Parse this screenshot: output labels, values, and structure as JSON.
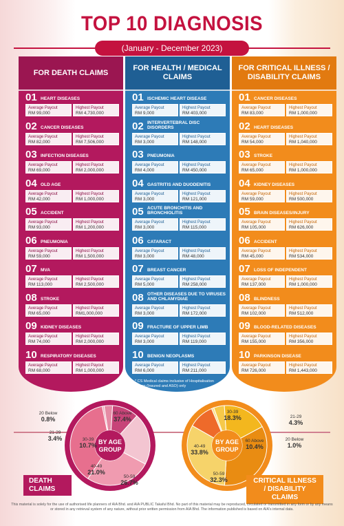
{
  "header": {
    "title": "TOP 10 DIAGNOSIS",
    "subtitle": "(January - December 2023)"
  },
  "columns": {
    "death": {
      "title": "FOR DEATH CLAIMS",
      "items": [
        {
          "num": "01",
          "name": "HEART DISEASES",
          "avg_label": "Average Payout",
          "avg": "RM 99,000",
          "high_label": "Highest Payout",
          "high": "RM 4,730,000"
        },
        {
          "num": "02",
          "name": "CANCER DISEASES",
          "avg_label": "Average Payout",
          "avg": "RM 82,000",
          "high_label": "Highest Payout",
          "high": "RM 7,506,000"
        },
        {
          "num": "03",
          "name": "INFECTION DISEASES",
          "avg_label": "Average Payout",
          "avg": "RM 69,000",
          "high_label": "Highest Payout",
          "high": "RM 2,000,000"
        },
        {
          "num": "04",
          "name": "OLD AGE",
          "avg_label": "Average Payout",
          "avg": "RM 42,000",
          "high_label": "Highest Payout",
          "high": "RM 1,000,000"
        },
        {
          "num": "05",
          "name": "ACCIDENT",
          "avg_label": "Average Payout",
          "avg": "RM 93,000",
          "high_label": "Highest Payout",
          "high": "RM 1,200,000"
        },
        {
          "num": "06",
          "name": "PNEUMONIA",
          "avg_label": "Average Payout",
          "avg": "RM 59,000",
          "high_label": "Highest Payout",
          "high": "RM 1,500,000"
        },
        {
          "num": "07",
          "name": "MVA",
          "avg_label": "Average Payout",
          "avg": "RM 113,000",
          "high_label": "Highest Payout",
          "high": "RM 2,500,000"
        },
        {
          "num": "08",
          "name": "STROKE",
          "avg_label": "Average Payout",
          "avg": "RM 65,000",
          "high_label": "Highest Payout",
          "high": "RM1,000,000"
        },
        {
          "num": "09",
          "name": "KIDNEY DISEASES",
          "avg_label": "Average Payout",
          "avg": "RM 74,000",
          "high_label": "Highest Payout",
          "high": "RM 2,000,000"
        },
        {
          "num": "10",
          "name": "RESPIRATORY DISEASES",
          "avg_label": "Average Payout",
          "avg": "RM 68,000",
          "high_label": "Highest Payout",
          "high": "RM 1,000,000"
        }
      ]
    },
    "health": {
      "title": "FOR HEALTH / MEDICAL CLAIMS",
      "items": [
        {
          "num": "01",
          "name": "ISCHEMIC HEART DISEASE",
          "avg_label": "Average Payout",
          "avg": "RM 9,000",
          "high_label": "Highest Payout",
          "high": "RM 403,000"
        },
        {
          "num": "02",
          "name": "INTERVERTEBRAL DISC DISORDERS",
          "avg_label": "Average Payout",
          "avg": "RM 3,000",
          "high_label": "Highest Payout",
          "high": "RM 148,000"
        },
        {
          "num": "03",
          "name": "PNEUMONIA",
          "avg_label": "Average Payout",
          "avg": "RM 4,000",
          "high_label": "Highest Payout",
          "high": "RM 450,000"
        },
        {
          "num": "04",
          "name": "GASTRITIS AND DUODENITIS",
          "avg_label": "Average Payout",
          "avg": "RM 3,000",
          "high_label": "Highest Payout",
          "high": "RM 121,000"
        },
        {
          "num": "05",
          "name": "ACUTE BRONCHITIS AND BRONCHIOLITIS",
          "avg_label": "Average Payout",
          "avg": "RM 3,000",
          "high_label": "Highest Payout",
          "high": "RM 115,000"
        },
        {
          "num": "06",
          "name": "CATARACT",
          "avg_label": "Average Payout",
          "avg": "RM 3,000",
          "high_label": "Highest Payout",
          "high": "RM 48,000"
        },
        {
          "num": "07",
          "name": "BREAST CANCER",
          "avg_label": "Average Payout",
          "avg": "RM 5,000",
          "high_label": "Highest Payout",
          "high": "RM 258,000"
        },
        {
          "num": "08",
          "name": "OTHER DISEASES DUE TO VIRUSES AND CHLAMYDIAE",
          "avg_label": "Average Payout",
          "avg": "RM 3,000",
          "high_label": "Highest Payout",
          "high": "RM 172,000"
        },
        {
          "num": "09",
          "name": "FRACTURE OF UPPER LIMB",
          "avg_label": "Average Payout",
          "avg": "RM 3,000",
          "high_label": "Highest Payout",
          "high": "RM 119,000"
        },
        {
          "num": "10",
          "name": "BENIGN NEOPLASMS",
          "avg_label": "Average Payout",
          "avg": "RM 6,000",
          "high_label": "Highest Payout",
          "high": "RM 211,000"
        }
      ],
      "note": "* CS Medical claims inclusive of Hospitalisation claims (Insured and ASO) only"
    },
    "ci": {
      "title": "FOR CRITICAL ILLNESS / DISABILITY CLAIMS",
      "items": [
        {
          "num": "01",
          "name": "CANCER DISEASES",
          "avg_label": "Average Payout",
          "avg": "RM 83,000",
          "high_label": "Highest Payout",
          "high": "RM 1,000,000"
        },
        {
          "num": "02",
          "name": "HEART DISEASES",
          "avg_label": "Average Payout",
          "avg": "RM 54,000",
          "high_label": "Highest Payout",
          "high": "RM 1,040,000"
        },
        {
          "num": "03",
          "name": "STROKE",
          "avg_label": "Average Payout",
          "avg": "RM 65,000",
          "high_label": "Highest Payout",
          "high": "RM 1,000,000"
        },
        {
          "num": "04",
          "name": "KIDNEY DISEASES",
          "avg_label": "Average Payout",
          "avg": "RM 59,000",
          "high_label": "Highest Payout",
          "high": "RM 500,000"
        },
        {
          "num": "05",
          "name": "BRAIN DISEASES/INJURY",
          "avg_label": "Average Payout",
          "avg": "RM 105,000",
          "high_label": "Highest Payout",
          "high": "RM 626,000"
        },
        {
          "num": "06",
          "name": "ACCIDENT",
          "avg_label": "Average Payout",
          "avg": "RM 45,000",
          "high_label": "Highest Payout",
          "high": "RM 534,000"
        },
        {
          "num": "07",
          "name": "LOSS OF INDEPENDENT",
          "avg_label": "Average Payout",
          "avg": "RM 137,000",
          "high_label": "Highest Payout",
          "high": "RM 1,000,000"
        },
        {
          "num": "08",
          "name": "BLINDNESS",
          "avg_label": "Average Payout",
          "avg": "RM 102,000",
          "high_label": "Highest Payout",
          "high": "RM 512,000"
        },
        {
          "num": "09",
          "name": "BLOOD-RELATED DISEASES",
          "avg_label": "Average Payout",
          "avg": "RM 155,000",
          "high_label": "Highest Payout",
          "high": "RM 356,000"
        },
        {
          "num": "10",
          "name": "PARKINSON DISEASE",
          "avg_label": "Average Payout",
          "avg": "RM 726,000",
          "high_label": "Highest Payout",
          "high": "RM 1,443,000"
        }
      ]
    }
  },
  "age_charts": {
    "center_label": "BY AGE GROUP",
    "death": {
      "label": "DEATH CLAIMS",
      "segments": [
        {
          "group": "20 Below",
          "value": "0.8%"
        },
        {
          "group": "21-29",
          "value": "3.4%"
        },
        {
          "group": "30-39",
          "value": "10.7%"
        },
        {
          "group": "40-49",
          "value": "21.0%"
        },
        {
          "group": "50-59",
          "value": "26.7%"
        },
        {
          "group": "60 Above",
          "value": "37.4%"
        }
      ]
    },
    "ci": {
      "label": "CRITICAL ILLNESS / DISABILITY CLAIMS",
      "segments": [
        {
          "group": "20 Below",
          "value": "1.0%"
        },
        {
          "group": "21-29",
          "value": "4.3%"
        },
        {
          "group": "30-39",
          "value": "18.3%"
        },
        {
          "group": "40-49",
          "value": "33.8%"
        },
        {
          "group": "50-59",
          "value": "32.3%"
        },
        {
          "group": "60 Above",
          "value": "10.4%"
        }
      ]
    }
  },
  "footer": "This material is solely for the use of authorised life planners of AIA Bhd. and AIA PUBLIC Takaful Bhd. No part of this material may be reproduced, circulated or transmitted in any form or by any means or stored in any retrieval system of any nature, without prior written permission from AIA Bhd. The information published is based on AIA's internal data.",
  "colors": {
    "death": "#b3195e",
    "health": "#2d7bb7",
    "ci": "#f28c1c",
    "title": "#c4123f"
  }
}
